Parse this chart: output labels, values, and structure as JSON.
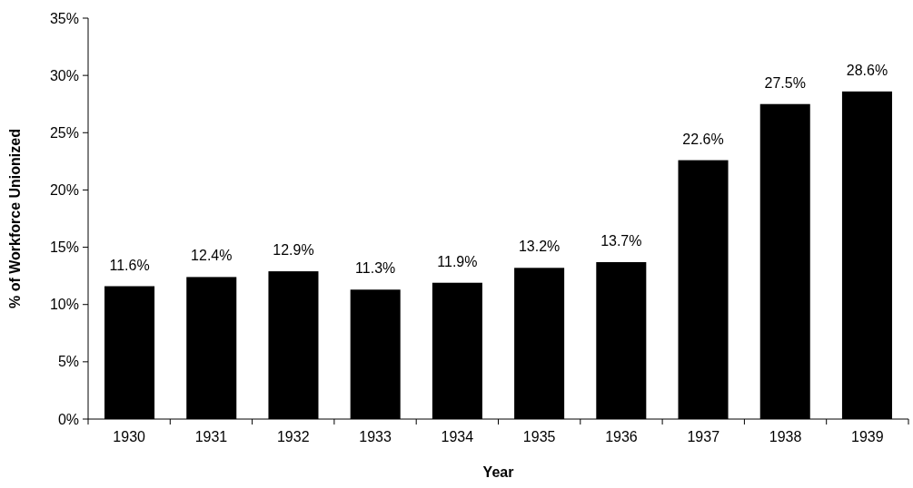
{
  "chart_data": {
    "type": "bar",
    "xlabel": "Year",
    "ylabel": "% of Workforce Unionized",
    "categories": [
      "1930",
      "1931",
      "1932",
      "1933",
      "1934",
      "1935",
      "1936",
      "1937",
      "1938",
      "1939"
    ],
    "values": [
      11.6,
      12.4,
      12.9,
      11.3,
      11.9,
      13.2,
      13.7,
      22.6,
      27.5,
      28.6
    ],
    "value_labels": [
      "11.6%",
      "12.4%",
      "12.9%",
      "11.3%",
      "11.9%",
      "13.2%",
      "13.7%",
      "22.6%",
      "27.5%",
      "28.6%"
    ],
    "color": "#000000",
    "ylim": [
      0,
      35
    ],
    "yticks": [
      {
        "value": 0,
        "label": "0%"
      },
      {
        "value": 5,
        "label": "5%"
      },
      {
        "value": 10,
        "label": "10%"
      },
      {
        "value": 15,
        "label": "15%"
      },
      {
        "value": 20,
        "label": "20%"
      },
      {
        "value": 25,
        "label": "25%"
      },
      {
        "value": 30,
        "label": "30%"
      },
      {
        "value": 35,
        "label": "35%"
      }
    ],
    "grid": false
  }
}
